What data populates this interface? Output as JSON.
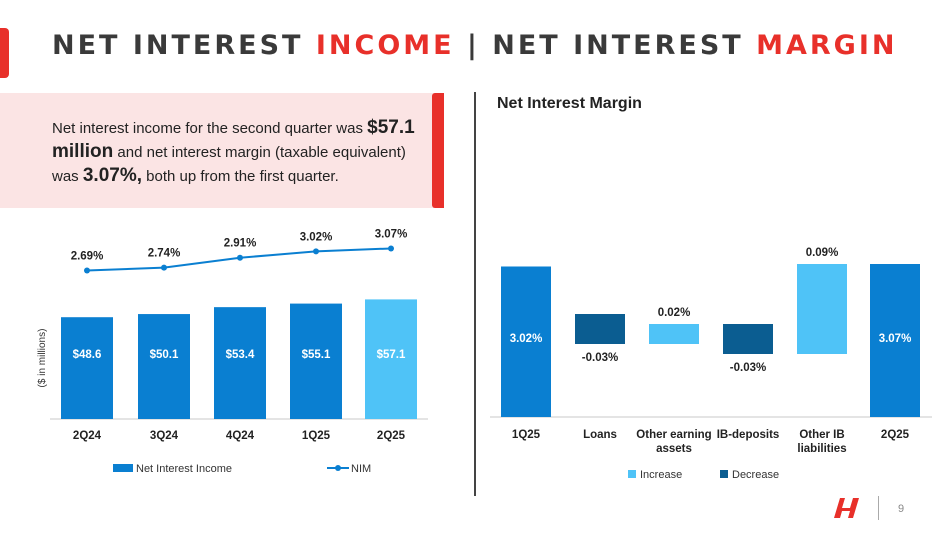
{
  "header": {
    "title_part1": "NET INTEREST ",
    "title_part2": "INCOME",
    "title_part3": " | NET INTEREST ",
    "title_part4": "MARGIN"
  },
  "summary": {
    "text1": "Net interest income for the second quarter was ",
    "value1": "$57.1 million",
    "text2": " and net interest margin (taxable equivalent) was ",
    "value2": "3.07%,",
    "text3": " both up from the first quarter."
  },
  "right_panel_title": "Net Interest Margin",
  "page_number": "9",
  "colors": {
    "accent": "#e8302a",
    "bar_blue": "#0a7fd1",
    "highlight_blue": "#4fc3f7",
    "decrease_navy": "#0b5d91"
  },
  "chart_data": [
    {
      "type": "bar",
      "categories": [
        "2Q24",
        "3Q24",
        "4Q24",
        "1Q25",
        "2Q25"
      ],
      "series": [
        {
          "name": "Net Interest Income",
          "values": [
            48.6,
            50.1,
            53.4,
            55.1,
            57.1
          ],
          "labels": [
            "$48.6",
            "$50.1",
            "$53.4",
            "$55.1",
            "$57.1"
          ]
        },
        {
          "name": "NIM",
          "type": "line",
          "values": [
            2.69,
            2.74,
            2.91,
            3.02,
            3.07
          ],
          "labels": [
            "2.69%",
            "2.74%",
            "2.91%",
            "3.02%",
            "3.07%"
          ]
        }
      ],
      "ylabel": "($ in millions)",
      "legend": "bottom"
    },
    {
      "type": "bar",
      "subtype": "waterfall",
      "title": "Net Interest Margin",
      "categories": [
        "1Q25",
        "Loans",
        "Other earning assets",
        "IB-deposits",
        "Other IB liabilities",
        "2Q25"
      ],
      "values": [
        3.02,
        -0.03,
        0.02,
        -0.03,
        0.09,
        3.07
      ],
      "labels": [
        "3.02%",
        "-0.03%",
        "0.02%",
        "-0.03%",
        "0.09%",
        "3.07%"
      ],
      "series": [
        {
          "name": "Increase"
        },
        {
          "name": "Decrease"
        }
      ],
      "legend": "bottom"
    }
  ]
}
